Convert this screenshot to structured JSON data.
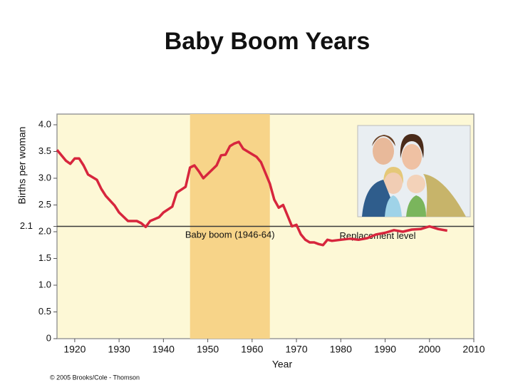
{
  "chart_data": {
    "type": "line",
    "title": "Baby Boom Years",
    "y_label": "Births per woman",
    "x_label": "Year",
    "copyright": "© 2005 Brooks/Cole - Thomson",
    "baby_boom": {
      "label": "Baby boom (1946-64)",
      "start": 1946,
      "end": 1964,
      "color": "#f7d489"
    },
    "replacement_level": {
      "value": 2.1,
      "label": "Replacement level",
      "color": "#3a3a3a"
    },
    "xlim": [
      1916,
      2010
    ],
    "xticks": [
      1920,
      1930,
      1940,
      1950,
      1960,
      1970,
      1980,
      1990,
      2000,
      2010
    ],
    "ylim": [
      0,
      4.2
    ],
    "yticks": [
      0,
      {
        "value": 0.5,
        "label": "0.5"
      },
      {
        "value": 1,
        "label": "1.0"
      },
      {
        "value": 1.5,
        "label": "1.5"
      },
      {
        "value": 2,
        "label": "2.0"
      },
      {
        "value": 2.1,
        "label": "2.1"
      },
      {
        "value": 2.5,
        "label": "2.5"
      },
      {
        "value": 3,
        "label": "3.0"
      },
      {
        "value": 3.5,
        "label": "3.5"
      },
      {
        "value": 4,
        "label": "4.0"
      }
    ],
    "grid": false,
    "x": [
      1916,
      1918,
      1919,
      1920,
      1921,
      1922,
      1923,
      1925,
      1926,
      1927,
      1929,
      1930,
      1932,
      1934,
      1935,
      1936,
      1937,
      1939,
      1940,
      1942,
      1943,
      1945,
      1946,
      1947,
      1948,
      1949,
      1951,
      1952,
      1953,
      1954,
      1955,
      1956,
      1957,
      1958,
      1959,
      1960,
      1961,
      1962,
      1963,
      1964,
      1965,
      1966,
      1967,
      1968,
      1969,
      1970,
      1971,
      1972,
      1973,
      1974,
      1975,
      1976,
      1977,
      1978,
      1980,
      1982,
      1984,
      1986,
      1988,
      1990,
      1992,
      1994,
      1996,
      1998,
      2000,
      2002,
      2004
    ],
    "series": [
      {
        "name": "Births per woman",
        "color": "#d7263d",
        "values": [
          3.53,
          3.33,
          3.27,
          3.37,
          3.37,
          3.24,
          3.07,
          2.97,
          2.8,
          2.67,
          2.49,
          2.36,
          2.2,
          2.2,
          2.16,
          2.09,
          2.2,
          2.27,
          2.36,
          2.47,
          2.73,
          2.84,
          3.2,
          3.24,
          3.13,
          3.0,
          3.16,
          3.24,
          3.43,
          3.44,
          3.6,
          3.65,
          3.68,
          3.55,
          3.5,
          3.45,
          3.4,
          3.3,
          3.1,
          2.9,
          2.6,
          2.45,
          2.5,
          2.3,
          2.1,
          2.13,
          1.95,
          1.85,
          1.8,
          1.8,
          1.77,
          1.75,
          1.85,
          1.83,
          1.85,
          1.87,
          1.85,
          1.88,
          1.95,
          1.98,
          2.03,
          2.0,
          2.04,
          2.05,
          2.1,
          2.05,
          2.02
        ]
      }
    ]
  }
}
